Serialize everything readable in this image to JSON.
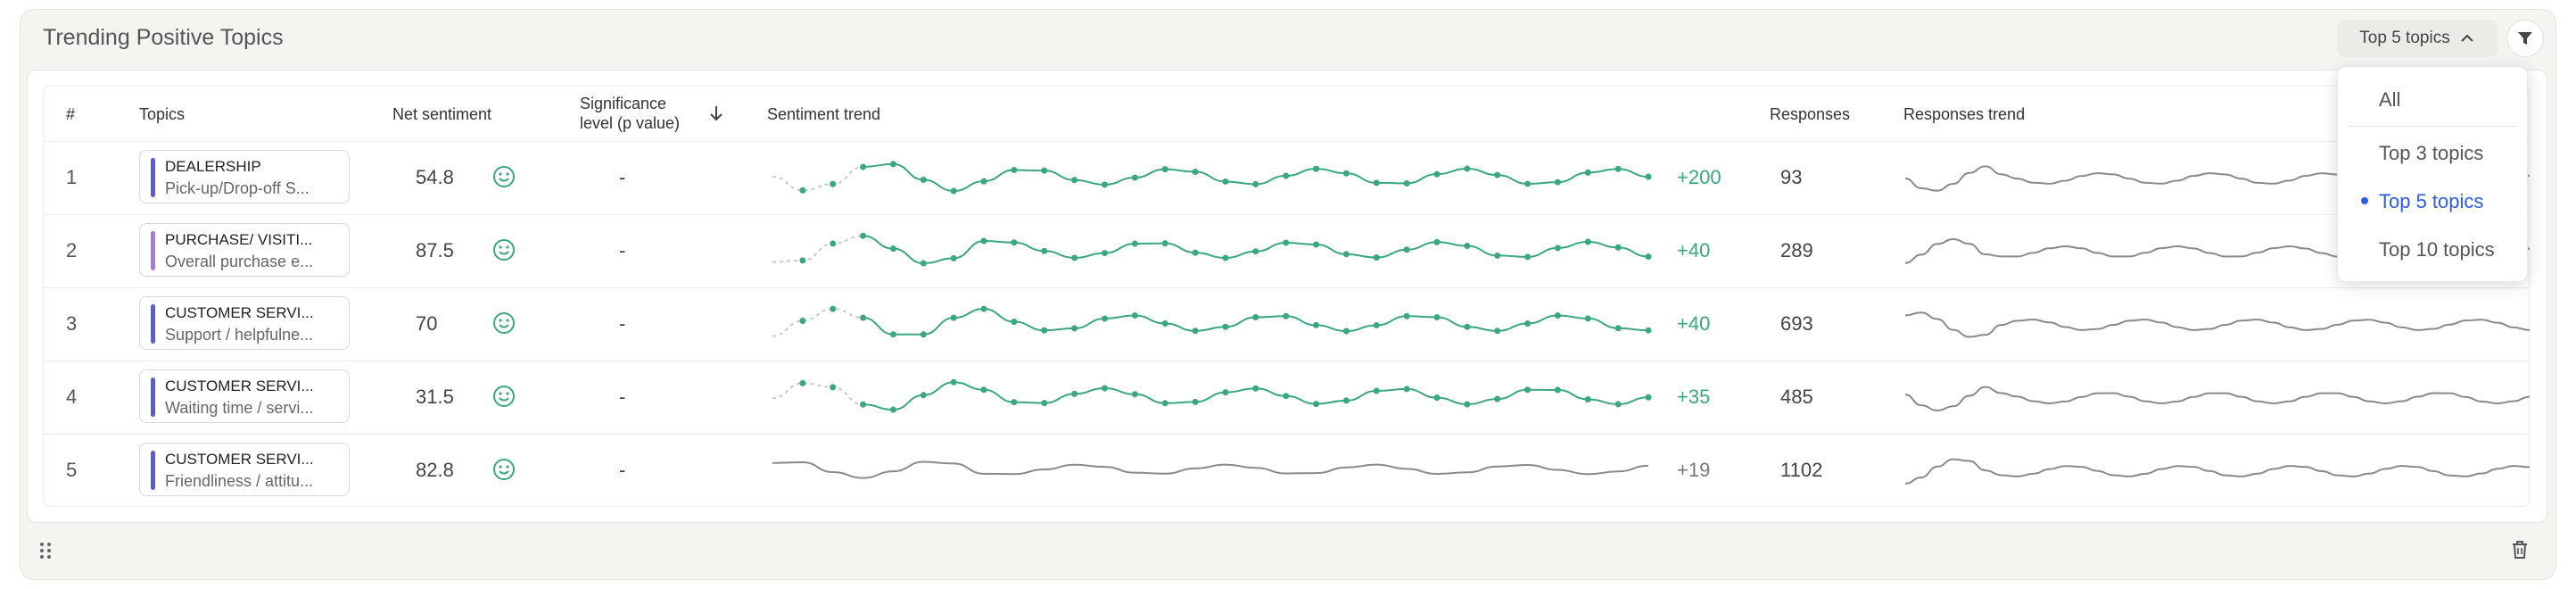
{
  "card": {
    "title": "Trending Positive Topics"
  },
  "controls": {
    "top_select_label": "Top 5 topics"
  },
  "table": {
    "headers": {
      "rank": "#",
      "topics": "Topics",
      "net_sentiment": "Net sentiment",
      "significance_line1": "Significance",
      "significance_line2": "level (p value)",
      "sentiment_trend": "Sentiment trend",
      "responses": "Responses",
      "responses_trend": "Responses trend"
    },
    "rows": [
      {
        "rank": "1",
        "topic": "DEALERSHIP",
        "subtopic": "Pick-up/Drop-off S...",
        "net": "54.8",
        "significance": "-",
        "delta": "+200",
        "responses": "93",
        "bar_color": "#5b5bd6"
      },
      {
        "rank": "2",
        "topic": "PURCHASE/ VISITI...",
        "subtopic": "Overall purchase e...",
        "net": "87.5",
        "significance": "-",
        "delta": "+40",
        "responses": "289",
        "bar_color": "#a678e0"
      },
      {
        "rank": "3",
        "topic": "CUSTOMER SERVI...",
        "subtopic": "Support / helpfulne...",
        "net": "70",
        "significance": "-",
        "delta": "+40",
        "responses": "693",
        "bar_color": "#5b5bd6"
      },
      {
        "rank": "4",
        "topic": "CUSTOMER SERVI...",
        "subtopic": "Waiting time / servi...",
        "net": "31.5",
        "significance": "-",
        "delta": "+35",
        "responses": "485",
        "bar_color": "#5b5bd6"
      },
      {
        "rank": "5",
        "topic": "CUSTOMER SERVI...",
        "subtopic": "Friendliness / attitu...",
        "net": "82.8",
        "significance": "-",
        "delta": "+19",
        "responses": "1102",
        "bar_color": "#5b5bd6"
      }
    ]
  },
  "dropdown": {
    "options": [
      "All",
      "Top 3 topics",
      "Top 5 topics",
      "Top 10 topics"
    ],
    "selected": "Top 5 topics"
  },
  "colors": {
    "positive": "#3aa77e",
    "accent": "#2d5be3",
    "trend_gray": "#8a8a8a"
  },
  "icons": {
    "chevron": "chevron-up-icon",
    "filter": "filter-icon",
    "sort": "arrow-down-icon",
    "smiley": "smiley-icon",
    "drag": "drag-handle-icon",
    "trash": "trash-icon"
  }
}
